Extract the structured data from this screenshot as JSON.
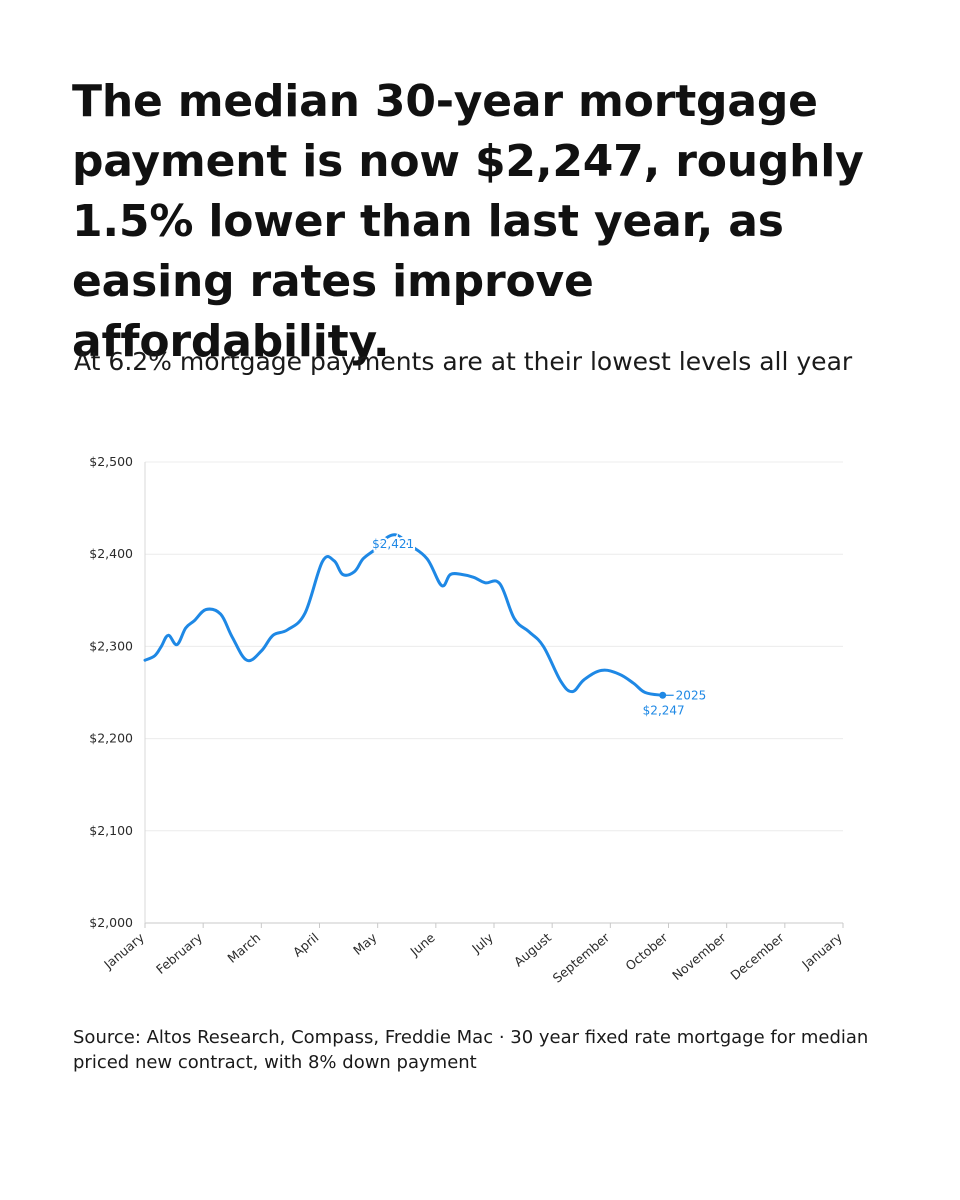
{
  "headline": "The median 30-year mortgage payment is now $2,247, roughly 1.5% lower than last year, as easing rates improve affordability.",
  "subtitle": "At 6.2% mortgage payments are at their lowest levels all year",
  "source": "Source: Altos Research, Compass, Freddie Mac · 30 year fixed rate mortgage for median priced new contract, with 8% down payment",
  "colors": {
    "line": "#1e88e5",
    "grid": "#ececec",
    "text": "#111111"
  },
  "chart_data": {
    "type": "line",
    "ylim": [
      2000,
      2500
    ],
    "yticks": [
      2000,
      2100,
      2200,
      2300,
      2400,
      2500
    ],
    "ytick_labels": [
      "$2,000",
      "$2,100",
      "$2,200",
      "$2,300",
      "$2,400",
      "$2,500"
    ],
    "xlim": [
      0,
      12
    ],
    "xticks": [
      0,
      1,
      2,
      3,
      4,
      5,
      6,
      7,
      8,
      9,
      10,
      11,
      12
    ],
    "xtick_labels": [
      "January",
      "February",
      "March",
      "April",
      "May",
      "June",
      "July",
      "August",
      "September",
      "October",
      "November",
      "December",
      "January"
    ],
    "grid": true,
    "series": [
      {
        "name": "2025",
        "x": [
          0,
          0.17,
          0.28,
          0.4,
          0.55,
          0.7,
          0.85,
          1.05,
          1.3,
          1.5,
          1.75,
          2.0,
          2.2,
          2.45,
          2.75,
          3.05,
          3.25,
          3.4,
          3.6,
          3.75,
          3.95,
          4.05,
          4.3,
          4.55,
          4.85,
          5.1,
          5.25,
          5.45,
          5.65,
          5.85,
          6.1,
          6.35,
          6.6,
          6.85,
          7.15,
          7.35,
          7.55,
          7.85,
          8.15,
          8.4,
          8.6,
          8.9,
          9.2,
          9.55,
          9.9,
          10.1
        ],
        "y": [
          2285,
          2290,
          2300,
          2312,
          2302,
          2320,
          2328,
          2340,
          2335,
          2310,
          2285,
          2295,
          2312,
          2318,
          2336,
          2392,
          2393,
          2378,
          2381,
          2395,
          2405,
          2413,
          2421,
          2410,
          2395,
          2366,
          2378,
          2378,
          2375,
          2369,
          2368,
          2330,
          2316,
          2300,
          2262,
          2251,
          2264,
          2274,
          2270,
          2260,
          2250,
          2247,
          2247,
          2247,
          2247,
          2247
        ],
        "points_used": 42
      }
    ],
    "annotations": [
      {
        "text": "$2,421",
        "x": 4.3,
        "y": 2421
      },
      {
        "text": "2025",
        "x": 9.6,
        "y": 2247
      },
      {
        "text": "$2,247",
        "x": 9.6,
        "y": 2247
      }
    ]
  }
}
